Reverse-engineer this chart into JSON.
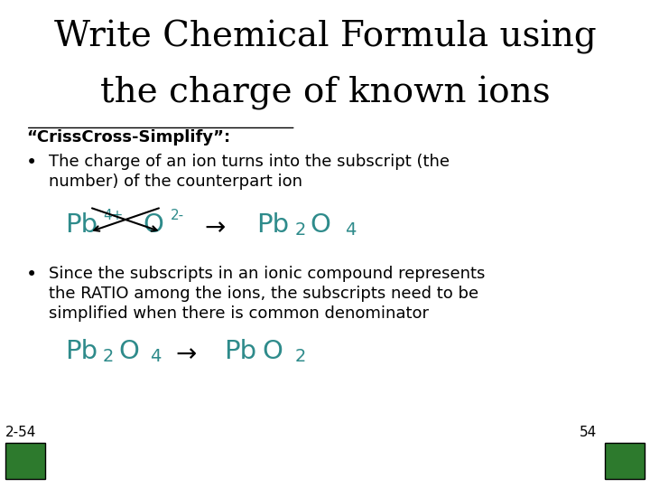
{
  "title_line1": "Write Chemical Formula using",
  "title_line2": "the charge of known ions",
  "title_fontsize": 28,
  "title_font": "serif",
  "subtitle": "“CrissCross-Simplify”:",
  "subtitle_fontsize": 13,
  "bullet1_line1": "The charge of an ion turns into the subscript (the",
  "bullet1_line2": "number) of the counterpart ion",
  "bullet2_line1": "Since the subscripts in an ionic compound represents",
  "bullet2_line2": "the RATIO among the ions, the subscripts need to be",
  "bullet2_line3": "simplified when there is common denominator",
  "body_fontsize": 13,
  "teal_color": "#2E8B8B",
  "black_color": "#000000",
  "bg_color": "#ffffff",
  "green_box_color": "#2d7a2d",
  "slide_num": "54",
  "slide_label": "2-54"
}
